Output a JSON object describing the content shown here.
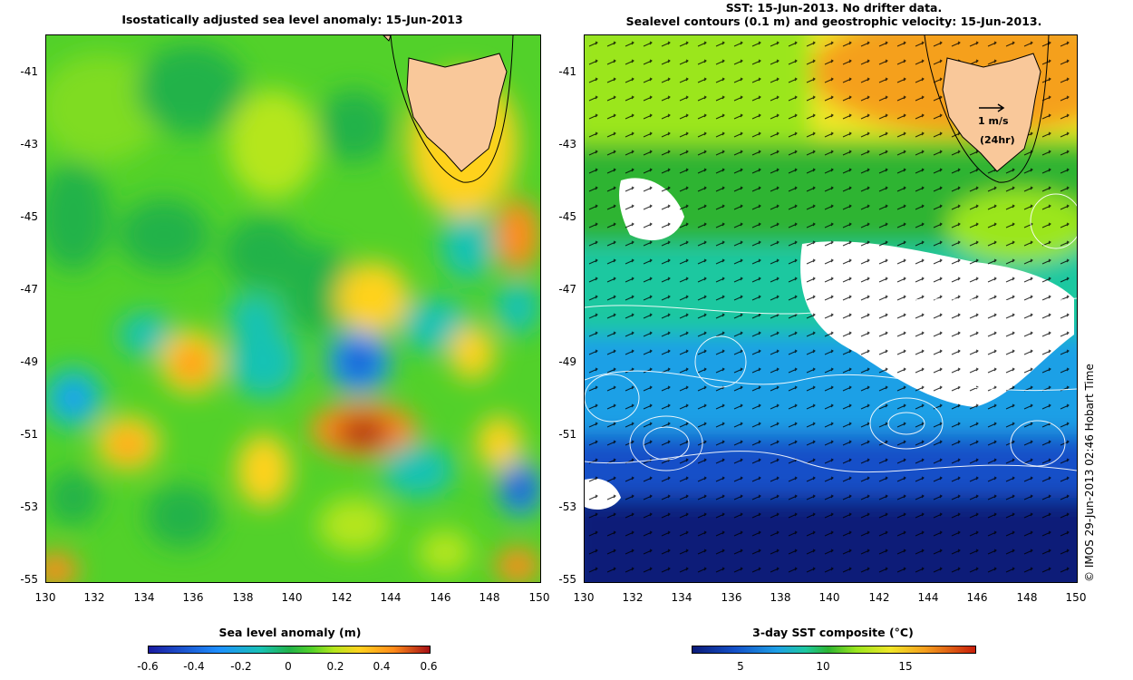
{
  "left": {
    "title": "Isostatically adjusted sea level anomaly: 15-Jun-2013",
    "lat_ticks": [
      "-41",
      "-43",
      "-45",
      "-47",
      "-49",
      "-51",
      "-53",
      "-55"
    ],
    "lon_ticks": [
      "130",
      "132",
      "134",
      "136",
      "138",
      "140",
      "142",
      "144",
      "146",
      "148",
      "150"
    ],
    "colorbar_title": "Sea level anomaly (m)",
    "colorbar_ticks": [
      "-0.6",
      "-0.4",
      "-0.2",
      "0",
      "0.2",
      "0.4",
      "0.6"
    ],
    "colors": [
      "#1a1aa0",
      "#1e90ff",
      "#19c2b4",
      "#21b24a",
      "#52d12a",
      "#b5e61d",
      "#ffd21f",
      "#ff8c1a",
      "#a50f15"
    ]
  },
  "right": {
    "title_line1": "SST: 15-Jun-2013. No drifter data.",
    "title_line2": "Sealevel contours (0.1 m) and geostrophic velocity: 15-Jun-2013.",
    "lat_ticks": [
      "-41",
      "-43",
      "-45",
      "-47",
      "-49",
      "-51",
      "-53",
      "-55"
    ],
    "lon_ticks": [
      "130",
      "132",
      "134",
      "136",
      "138",
      "140",
      "142",
      "144",
      "146",
      "148",
      "150"
    ],
    "colorbar_title": "3-day SST composite (°C)",
    "colorbar_ticks": [
      "5",
      "10",
      "15"
    ],
    "velocity_scale_label": "1 m/s",
    "velocity_scale_sub": "(24hr)",
    "colors": [
      "#0a1a78",
      "#1450c8",
      "#1ea0e6",
      "#1ec8a0",
      "#2db432",
      "#9be61e",
      "#f0e628",
      "#f5a01e",
      "#c81e0a"
    ]
  },
  "credit": "© IMOS 29-Jun-2013 02:46 Hobart Time",
  "land_color": "#f9c89a"
}
